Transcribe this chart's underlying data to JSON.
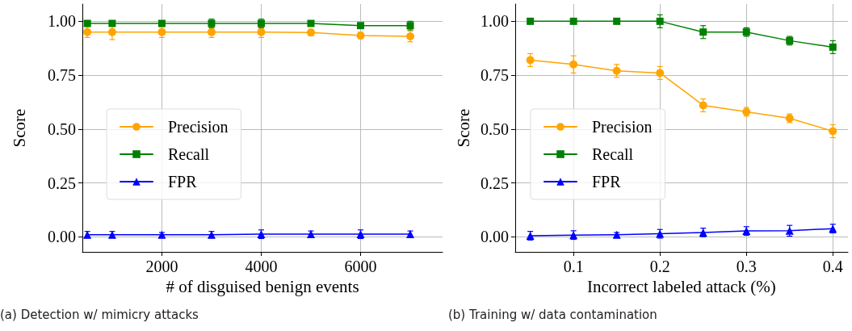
{
  "chart_data": [
    {
      "type": "line",
      "xlabel": "# of disguised benign events",
      "ylabel": "Score",
      "annotations": [
        "(a) Detection w/ mimicry attacks"
      ],
      "x": [
        500,
        1000,
        2000,
        3000,
        4000,
        5000,
        6000,
        7000
      ],
      "xlim": [
        400,
        7650
      ],
      "xticks": [
        2000,
        4000,
        6000
      ],
      "ylim": [
        -0.07,
        1.08
      ],
      "yticks": [
        {
          "value": 0,
          "label": "0.00"
        },
        {
          "value": 0.25,
          "label": "0.25"
        },
        {
          "value": 0.5,
          "label": "0.50"
        },
        {
          "value": 0.75,
          "label": "0.75"
        },
        {
          "value": 1,
          "label": "1.00"
        }
      ],
      "grid": true,
      "legend": "left",
      "line_style": "solid",
      "series": [
        {
          "name": "Precision",
          "color": "#ffa500",
          "marker": "circle",
          "values": [
            0.95,
            0.95,
            0.95,
            0.95,
            0.95,
            0.948,
            0.934,
            0.93
          ],
          "errors": [
            0.025,
            0.035,
            0.025,
            0.025,
            0.025,
            0.015,
            0.015,
            0.025
          ]
        },
        {
          "name": "Recall",
          "color": "#008000",
          "marker": "square",
          "values": [
            0.99,
            0.99,
            0.99,
            0.99,
            0.99,
            0.99,
            0.98,
            0.98
          ],
          "errors": [
            0.01,
            0.01,
            0.01,
            0.02,
            0.02,
            0.01,
            0.01,
            0.02
          ]
        },
        {
          "name": "FPR",
          "color": "#0000ff",
          "marker": "triangle",
          "values": [
            0.01,
            0.01,
            0.01,
            0.01,
            0.012,
            0.012,
            0.012,
            0.012
          ],
          "errors": [
            0.015,
            0.015,
            0.01,
            0.015,
            0.02,
            0.015,
            0.02,
            0.015
          ]
        }
      ]
    },
    {
      "type": "line",
      "xlabel": "Incorrect labeled attack (%)",
      "ylabel": "Score",
      "annotations": [
        "(b) Training w/ data contamination"
      ],
      "x": [
        0.05,
        0.1,
        0.15,
        0.2,
        0.25,
        0.3,
        0.35,
        0.4
      ],
      "xlim": [
        0.0325,
        0.4175
      ],
      "xticks": [
        0.1,
        0.2,
        0.3,
        0.4
      ],
      "ylim": [
        -0.07,
        1.08
      ],
      "yticks": [
        {
          "value": 0,
          "label": "0.00"
        },
        {
          "value": 0.25,
          "label": "0.25"
        },
        {
          "value": 0.5,
          "label": "0.50"
        },
        {
          "value": 0.75,
          "label": "0.75"
        },
        {
          "value": 1,
          "label": "1.00"
        }
      ],
      "grid": true,
      "legend": "left",
      "line_style": "solid",
      "series": [
        {
          "name": "Precision",
          "color": "#ffa500",
          "marker": "circle",
          "values": [
            0.82,
            0.8,
            0.77,
            0.76,
            0.61,
            0.58,
            0.55,
            0.49
          ],
          "errors": [
            0.03,
            0.04,
            0.03,
            0.03,
            0.03,
            0.02,
            0.02,
            0.03
          ]
        },
        {
          "name": "Recall",
          "color": "#008000",
          "marker": "square",
          "values": [
            1,
            1,
            1,
            1,
            0.95,
            0.95,
            0.91,
            0.88
          ],
          "errors": [
            0.01,
            0.01,
            0.01,
            0.03,
            0.03,
            0.02,
            0.02,
            0.03
          ]
        },
        {
          "name": "FPR",
          "color": "#0000ff",
          "marker": "triangle",
          "values": [
            0.005,
            0.008,
            0.01,
            0.014,
            0.02,
            0.027,
            0.028,
            0.038
          ],
          "errors": [
            0.02,
            0.02,
            0.01,
            0.02,
            0.02,
            0.02,
            0.025,
            0.02
          ]
        }
      ]
    }
  ]
}
